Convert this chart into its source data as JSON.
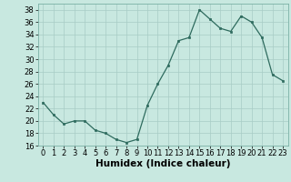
{
  "x": [
    0,
    1,
    2,
    3,
    4,
    5,
    6,
    7,
    8,
    9,
    10,
    11,
    12,
    13,
    14,
    15,
    16,
    17,
    18,
    19,
    20,
    21,
    22,
    23
  ],
  "y": [
    23,
    21,
    19.5,
    20,
    20,
    18.5,
    18,
    17,
    16.5,
    17,
    22.5,
    26,
    29,
    33,
    33.5,
    38,
    36.5,
    35,
    34.5,
    37,
    36,
    33.5,
    27.5,
    26.5
  ],
  "xlabel": "Humidex (Indice chaleur)",
  "ylim": [
    16,
    39
  ],
  "xlim": [
    -0.5,
    23.5
  ],
  "yticks": [
    16,
    18,
    20,
    22,
    24,
    26,
    28,
    30,
    32,
    34,
    36,
    38
  ],
  "xticks": [
    0,
    1,
    2,
    3,
    4,
    5,
    6,
    7,
    8,
    9,
    10,
    11,
    12,
    13,
    14,
    15,
    16,
    17,
    18,
    19,
    20,
    21,
    22,
    23
  ],
  "line_color": "#2e6b5e",
  "marker_color": "#2e6b5e",
  "bg_color": "#c8e8e0",
  "grid_color": "#a8ccc5",
  "label_fontsize": 7.5,
  "tick_fontsize": 6
}
